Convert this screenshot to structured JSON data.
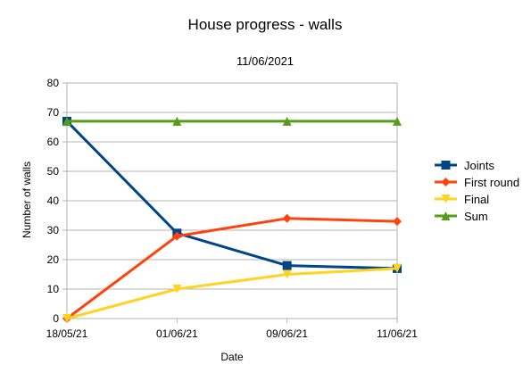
{
  "chart_data": {
    "type": "line",
    "title": "House progress - walls",
    "subtitle": "11/06/2021",
    "xlabel": "Date",
    "ylabel": "Number of walls",
    "categories": [
      "18/05/21",
      "01/06/21",
      "09/06/21",
      "11/06/21"
    ],
    "ylim": [
      0,
      80
    ],
    "yticks": [
      0,
      10,
      20,
      30,
      40,
      50,
      60,
      70,
      80
    ],
    "grid": "horizontal",
    "legend_position": "right",
    "series": [
      {
        "name": "Joints",
        "values": [
          67,
          29,
          18,
          17
        ],
        "color": "#004586",
        "marker": "square"
      },
      {
        "name": "First round",
        "values": [
          0,
          28,
          34,
          33
        ],
        "color": "#ff420e",
        "marker": "diamond"
      },
      {
        "name": "Final",
        "values": [
          0,
          10,
          15,
          17
        ],
        "color": "#ffd320",
        "marker": "triangle-down"
      },
      {
        "name": "Sum",
        "values": [
          67,
          67,
          67,
          67
        ],
        "color": "#579d1c",
        "marker": "triangle-up"
      }
    ]
  }
}
